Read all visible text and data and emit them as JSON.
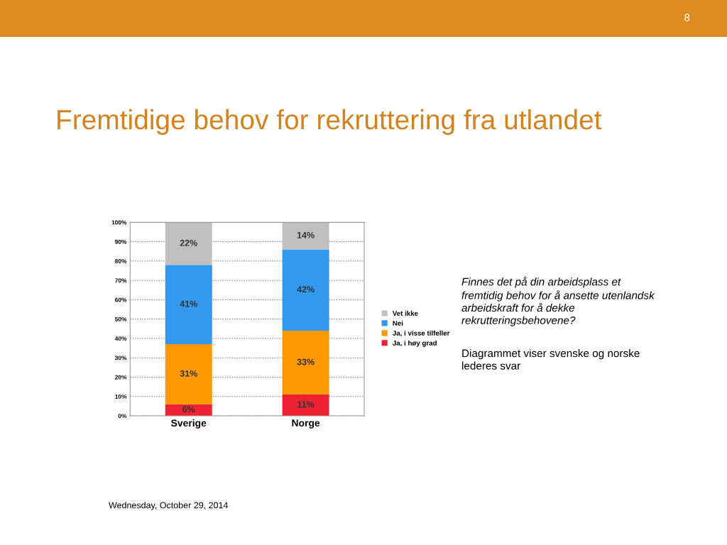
{
  "chart_data": {
    "type": "bar",
    "title": "Fremtidige behov for rekruttering fra utlandet",
    "categories": [
      "Sverige",
      "Norge"
    ],
    "stacked": true,
    "series": [
      {
        "name": "Ja, i høy grad",
        "color": "#ee2233",
        "values": [
          6,
          11
        ],
        "value_labels": [
          "6%",
          "11%"
        ]
      },
      {
        "name": "Ja, i visse tilfeller",
        "color": "#ff9900",
        "values": [
          31,
          33
        ],
        "value_labels": [
          "31%",
          "33%"
        ]
      },
      {
        "name": "Nei",
        "color": "#3399ee",
        "values": [
          41,
          42
        ],
        "value_labels": [
          "41%",
          "42%"
        ]
      },
      {
        "name": "Vet ikke",
        "color": "#c0c0c0",
        "values": [
          22,
          14
        ],
        "value_labels": [
          "22%",
          "14%"
        ]
      }
    ],
    "ylim": [
      0,
      100
    ],
    "yticks": [
      {
        "value": 0,
        "label": "0%"
      },
      {
        "value": 10,
        "label": "10%"
      },
      {
        "value": 20,
        "label": "20%"
      },
      {
        "value": 30,
        "label": "30%"
      },
      {
        "value": 40,
        "label": "40%"
      },
      {
        "value": 50,
        "label": "50%"
      },
      {
        "value": 60,
        "label": "60%"
      },
      {
        "value": 70,
        "label": "70%"
      },
      {
        "value": 80,
        "label": "80%"
      },
      {
        "value": 90,
        "label": "90%"
      },
      {
        "value": 100,
        "label": "100%"
      }
    ],
    "grid": "y",
    "legend": "right",
    "annotations": [
      "Finnes det på din arbeidsplass et\nfremtidig behov for å ansette utenlandsk\narbeidskraft for å dekke\nrekrutteringsbehovene?",
      "Diagrammet viser svenske og norske\nlederes svar",
      "Wednesday, October 29, 2014",
      "8"
    ]
  }
}
